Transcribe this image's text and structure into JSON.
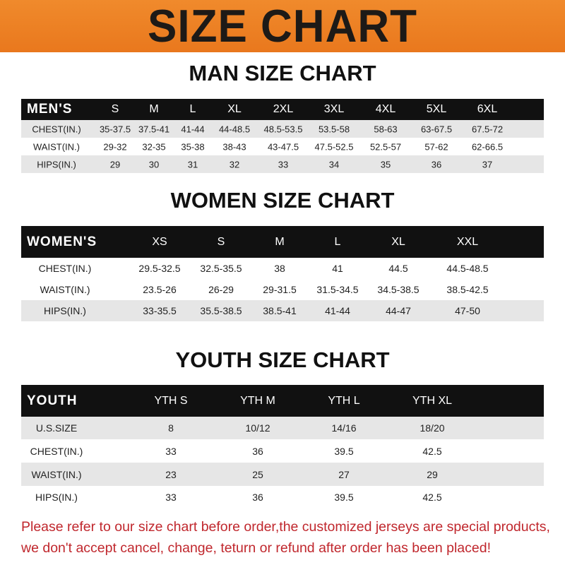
{
  "banner": {
    "title": "SIZE CHART",
    "color": "#ee8227"
  },
  "men": {
    "title": "MAN SIZE CHART",
    "header": [
      "MEN'S",
      "S",
      "M",
      "L",
      "XL",
      "2XL",
      "3XL",
      "4XL",
      "5XL",
      "6XL"
    ],
    "rows": [
      [
        "CHEST(IN.)",
        "35-37.5",
        "37.5-41",
        "41-44",
        "44-48.5",
        "48.5-53.5",
        "53.5-58",
        "58-63",
        "63-67.5",
        "67.5-72"
      ],
      [
        "WAIST(IN.)",
        "29-32",
        "32-35",
        "35-38",
        "38-43",
        "43-47.5",
        "47.5-52.5",
        "52.5-57",
        "57-62",
        "62-66.5"
      ],
      [
        "HIPS(IN.)",
        "29",
        "30",
        "31",
        "32",
        "33",
        "34",
        "35",
        "36",
        "37"
      ]
    ]
  },
  "women": {
    "title": "WOMEN SIZE CHART",
    "header": [
      "WOMEN'S",
      "XS",
      "S",
      "M",
      "L",
      "XL",
      "XXL"
    ],
    "rows": [
      [
        "CHEST(IN.)",
        "29.5-32.5",
        "32.5-35.5",
        "38",
        "41",
        "44.5",
        "44.5-48.5"
      ],
      [
        "WAIST(IN.)",
        "23.5-26",
        "26-29",
        "29-31.5",
        "31.5-34.5",
        "34.5-38.5",
        "38.5-42.5"
      ],
      [
        "HIPS(IN.)",
        "33-35.5",
        "35.5-38.5",
        "38.5-41",
        "41-44",
        "44-47",
        "47-50"
      ]
    ]
  },
  "youth": {
    "title": "YOUTH SIZE CHART",
    "header": [
      "YOUTH",
      "YTH S",
      "YTH M",
      "YTH L",
      "YTH XL"
    ],
    "rows": [
      [
        "U.S.SIZE",
        "8",
        "10/12",
        "14/16",
        "18/20"
      ],
      [
        "CHEST(IN.)",
        "33",
        "36",
        "39.5",
        "42.5"
      ],
      [
        "WAIST(IN.)",
        "23",
        "25",
        "27",
        "29"
      ],
      [
        "HIPS(IN.)",
        "33",
        "36",
        "39.5",
        "42.5"
      ]
    ]
  },
  "notice": {
    "line1": "Please refer to our size chart before order,the customized jerseys are special products,",
    "line2": "we don't accept cancel, change, teturn or refund after order has been placed!",
    "color": "#c0272d"
  }
}
